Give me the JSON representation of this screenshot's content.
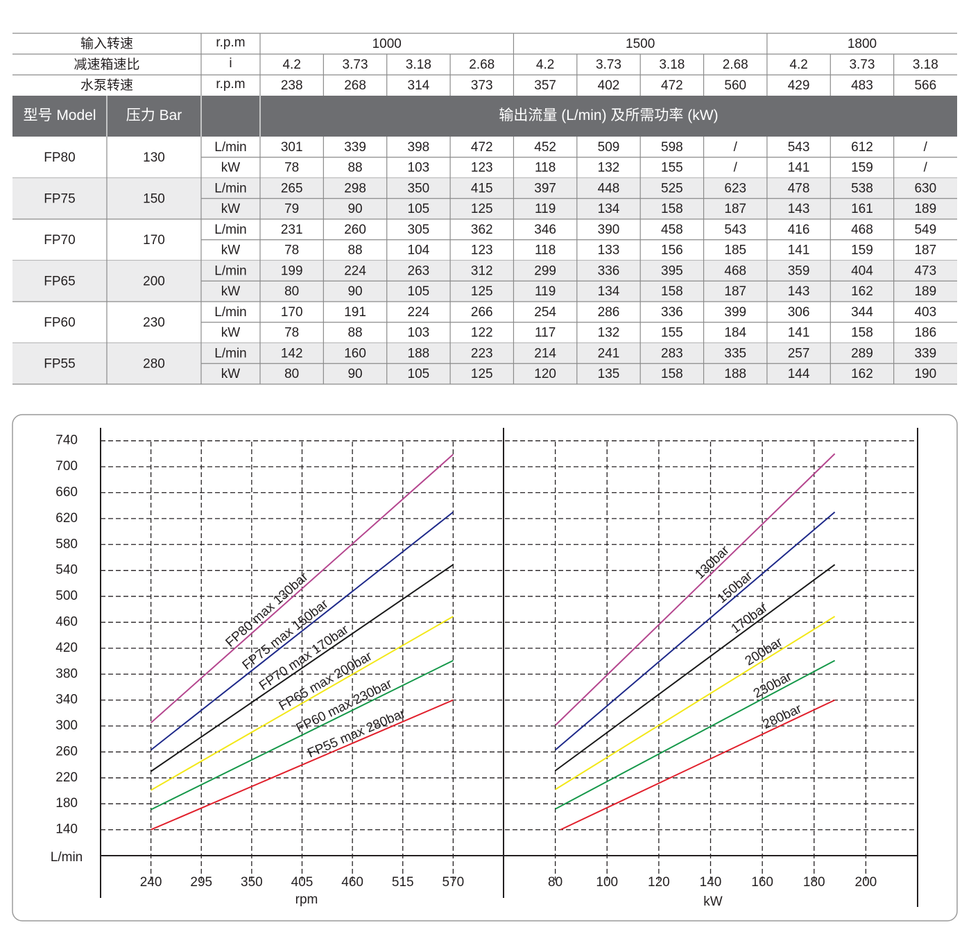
{
  "table": {
    "top_rows": [
      {
        "label": "输入转速",
        "unit": "r.p.m",
        "cells": [
          1000,
          1500,
          1800
        ]
      },
      {
        "label": "减速箱速比",
        "unit": "i",
        "cells": [
          4.2,
          3.73,
          3.18,
          2.68,
          4.2,
          3.73,
          3.18,
          2.68,
          4.2,
          3.73,
          3.18
        ]
      },
      {
        "label": "水泵转速",
        "unit": "r.p.m",
        "cells": [
          238,
          268,
          314,
          373,
          357,
          402,
          472,
          560,
          429,
          483,
          566
        ]
      }
    ],
    "head": [
      "型号 Model",
      "压力 Bar",
      "输出流量 (L/min) 及所需功率 (kW)"
    ],
    "models": [
      {
        "model": "FP80",
        "pressure": 130,
        "rows": [
          {
            "unit": "L/min",
            "cells": [
              301,
              339,
              398,
              472,
              452,
              509,
              598,
              "/",
              543,
              612,
              "/"
            ]
          },
          {
            "unit": "kW",
            "cells": [
              78,
              88,
              103,
              123,
              118,
              132,
              155,
              "/",
              141,
              159,
              "/"
            ]
          }
        ]
      },
      {
        "model": "FP75",
        "pressure": 150,
        "rows": [
          {
            "unit": "L/min",
            "cells": [
              265,
              298,
              350,
              415,
              397,
              448,
              525,
              623,
              478,
              538,
              630
            ]
          },
          {
            "unit": "kW",
            "cells": [
              79,
              90,
              105,
              125,
              119,
              134,
              158,
              187,
              143,
              161,
              189
            ]
          }
        ]
      },
      {
        "model": "FP70",
        "pressure": 170,
        "rows": [
          {
            "unit": "L/min",
            "cells": [
              231,
              260,
              305,
              362,
              346,
              390,
              458,
              543,
              416,
              468,
              549
            ]
          },
          {
            "unit": "kW",
            "cells": [
              78,
              88,
              104,
              123,
              118,
              133,
              156,
              185,
              141,
              159,
              187
            ]
          }
        ]
      },
      {
        "model": "FP65",
        "pressure": 200,
        "rows": [
          {
            "unit": "L/min",
            "cells": [
              199,
              224,
              263,
              312,
              299,
              336,
              395,
              468,
              359,
              404,
              473
            ]
          },
          {
            "unit": "kW",
            "cells": [
              80,
              90,
              105,
              125,
              119,
              134,
              158,
              187,
              143,
              162,
              189
            ]
          }
        ]
      },
      {
        "model": "FP60",
        "pressure": 230,
        "rows": [
          {
            "unit": "L/min",
            "cells": [
              170,
              191,
              224,
              266,
              254,
              286,
              336,
              399,
              306,
              344,
              403
            ]
          },
          {
            "unit": "kW",
            "cells": [
              78,
              88,
              103,
              122,
              117,
              132,
              155,
              184,
              141,
              158,
              186
            ]
          }
        ]
      },
      {
        "model": "FP55",
        "pressure": 280,
        "rows": [
          {
            "unit": "L/min",
            "cells": [
              142,
              160,
              188,
              223,
              214,
              241,
              283,
              335,
              257,
              289,
              339
            ]
          },
          {
            "unit": "kW",
            "cells": [
              80,
              90,
              105,
              125,
              120,
              135,
              158,
              188,
              144,
              162,
              190
            ]
          }
        ]
      }
    ]
  },
  "chart_data": [
    {
      "type": "line",
      "xlabel": "rpm",
      "ylabel": "L/min",
      "xlim": [
        185,
        625
      ],
      "xticks": [
        240,
        295,
        350,
        405,
        460,
        515,
        570
      ],
      "ylim": [
        100,
        760
      ],
      "yticks": [
        140,
        180,
        220,
        260,
        300,
        340,
        380,
        420,
        460,
        500,
        540,
        580,
        620,
        660,
        700,
        740
      ],
      "grid": true,
      "series": [
        {
          "name": "FP80 max 130bar",
          "color": "#b5478f",
          "x": [
            240,
            570
          ],
          "values": [
            305,
            719
          ]
        },
        {
          "name": "FP75 max 150bar",
          "color": "#1f2a8a",
          "x": [
            240,
            570
          ],
          "values": [
            263,
            630
          ]
        },
        {
          "name": "FP70 max 170bar",
          "color": "#1a1a1a",
          "x": [
            240,
            570
          ],
          "values": [
            230,
            549
          ]
        },
        {
          "name": "FP65 max 200bar",
          "color": "#f3e81a",
          "x": [
            240,
            570
          ],
          "values": [
            201,
            469
          ]
        },
        {
          "name": "FP60 max 230bar",
          "color": "#16984a",
          "x": [
            240,
            570
          ],
          "values": [
            171,
            401
          ]
        },
        {
          "name": "FP55 max 280bar",
          "color": "#e1202c",
          "x": [
            240,
            570
          ],
          "values": [
            140,
            340
          ]
        }
      ]
    },
    {
      "type": "line",
      "xlabel": "kW",
      "xlim": [
        60,
        220
      ],
      "xticks": [
        80,
        100,
        120,
        140,
        160,
        180,
        200
      ],
      "grid": true,
      "series": [
        {
          "name": "130bar",
          "color": "#b5478f",
          "x": [
            80,
            188
          ],
          "values": [
            301,
            720
          ]
        },
        {
          "name": "150bar",
          "color": "#1f2a8a",
          "x": [
            80,
            188
          ],
          "values": [
            263,
            630
          ]
        },
        {
          "name": "170bar",
          "color": "#1a1a1a",
          "x": [
            80,
            188
          ],
          "values": [
            231,
            549
          ]
        },
        {
          "name": "200bar",
          "color": "#f3e81a",
          "x": [
            80,
            188
          ],
          "values": [
            202,
            469
          ]
        },
        {
          "name": "230bar",
          "color": "#16984a",
          "x": [
            80,
            188
          ],
          "values": [
            172,
            401
          ]
        },
        {
          "name": "280bar",
          "color": "#e1202c",
          "x": [
            82,
            188
          ],
          "values": [
            140,
            340
          ]
        }
      ]
    }
  ]
}
